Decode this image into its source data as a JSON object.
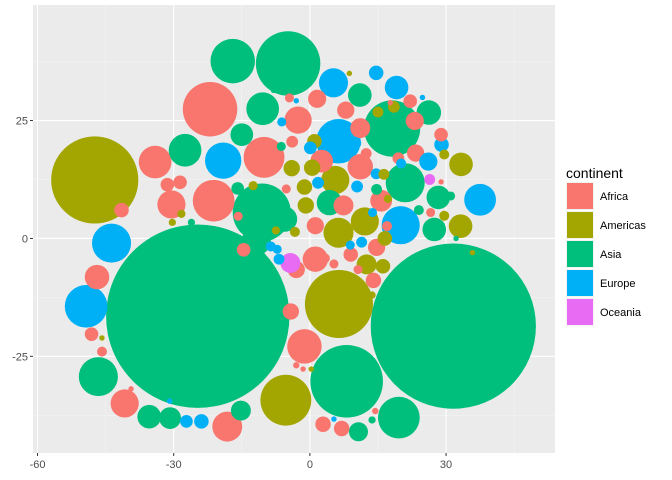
{
  "chart_data": {
    "type": "scatter",
    "subtype": "packed-circles",
    "xlim": [
      -61,
      54
    ],
    "ylim": [
      -45.5,
      49.5
    ],
    "x_ticks": [
      -60,
      -30,
      0,
      30
    ],
    "x_tick_labels": [
      "-60",
      "-30",
      "0",
      "30"
    ],
    "y_ticks": [
      -25,
      0,
      25
    ],
    "y_tick_labels": [
      "-25",
      "0",
      "25"
    ],
    "grid": true,
    "legend": {
      "title": "continent",
      "position": "right",
      "entries": [
        {
          "label": "Africa",
          "color": "#F8766D"
        },
        {
          "label": "Americas",
          "color": "#A3A500"
        },
        {
          "label": "Asia",
          "color": "#00BF7D"
        },
        {
          "label": "Europe",
          "color": "#00B0F6"
        },
        {
          "label": "Oceania",
          "color": "#E76BF3"
        }
      ]
    },
    "circles": [
      {
        "c": "Asia",
        "x": -24.7,
        "y": -16.5,
        "r": 20.2
      },
      {
        "c": "Asia",
        "x": 31.6,
        "y": -18.6,
        "r": 18.2
      },
      {
        "c": "Americas",
        "x": -47.4,
        "y": 12.4,
        "r": 9.6
      },
      {
        "c": "Americas",
        "x": 6.4,
        "y": -13.9,
        "r": 7.5
      },
      {
        "c": "Asia",
        "x": 8.1,
        "y": -30.3,
        "r": 8.0
      },
      {
        "c": "Asia",
        "x": -4.8,
        "y": 37.1,
        "r": 7.1
      },
      {
        "c": "Asia",
        "x": -10.6,
        "y": 5.5,
        "r": 6.4
      },
      {
        "c": "Asia",
        "x": 18.1,
        "y": 23.3,
        "r": 6.2
      },
      {
        "c": "Africa",
        "x": -22.0,
        "y": 27.4,
        "r": 6.0
      },
      {
        "c": "Europe",
        "x": 6.3,
        "y": 20.6,
        "r": 4.9
      },
      {
        "c": "Americas",
        "x": -5.3,
        "y": -34.3,
        "r": 5.6
      },
      {
        "c": "Asia",
        "x": -17.0,
        "y": 37.6,
        "r": 4.9
      },
      {
        "c": "Asia",
        "x": 19.6,
        "y": -38.0,
        "r": 4.6
      },
      {
        "c": "Africa",
        "x": -21.2,
        "y": 8.0,
        "r": 4.6
      },
      {
        "c": "Africa",
        "x": -10.1,
        "y": 17.2,
        "r": 4.5
      },
      {
        "c": "Asia",
        "x": -46.6,
        "y": -29.3,
        "r": 4.3
      },
      {
        "c": "Africa",
        "x": -1.2,
        "y": -22.9,
        "r": 3.8
      },
      {
        "c": "Europe",
        "x": -43.7,
        "y": -1.0,
        "r": 4.3
      },
      {
        "c": "Europe",
        "x": -49.3,
        "y": -14.4,
        "r": 4.7
      },
      {
        "c": "Asia",
        "x": 21.0,
        "y": 11.8,
        "r": 4.3
      },
      {
        "c": "Africa",
        "x": -34.1,
        "y": 16.2,
        "r": 3.6
      },
      {
        "c": "Europe",
        "x": -19.1,
        "y": 16.5,
        "r": 4.0
      },
      {
        "c": "Asia",
        "x": -27.5,
        "y": 18.7,
        "r": 3.6
      },
      {
        "c": "Asia",
        "x": -10.4,
        "y": 27.5,
        "r": 3.6
      },
      {
        "c": "Europe",
        "x": 20.0,
        "y": 2.8,
        "r": 4.2
      },
      {
        "c": "Asia",
        "x": -11.8,
        "y": -0.5,
        "r": 3.2
      },
      {
        "c": "Africa",
        "x": -40.8,
        "y": -35.0,
        "r": 3.1
      },
      {
        "c": "Asia",
        "x": -35.4,
        "y": -37.8,
        "r": 2.6
      },
      {
        "c": "Africa",
        "x": -18.2,
        "y": -39.9,
        "r": 3.3
      },
      {
        "c": "Europe",
        "x": 37.5,
        "y": 8.2,
        "r": 3.5
      },
      {
        "c": "Europe",
        "x": 5.2,
        "y": 33.0,
        "r": 3.2
      },
      {
        "c": "Africa",
        "x": -30.5,
        "y": 7.2,
        "r": 3.1
      },
      {
        "c": "Americas",
        "x": 5.6,
        "y": 12.4,
        "r": 3.1
      },
      {
        "c": "Americas",
        "x": 6.3,
        "y": 1.2,
        "r": 3.3
      },
      {
        "c": "Africa",
        "x": 11.1,
        "y": 15.2,
        "r": 2.8
      },
      {
        "c": "Asia",
        "x": 4.3,
        "y": 7.6,
        "r": 2.8
      },
      {
        "c": "Americas",
        "x": 12.1,
        "y": 3.6,
        "r": 3.1
      },
      {
        "c": "Asia",
        "x": -5.6,
        "y": 4.1,
        "r": 2.8
      },
      {
        "c": "Africa",
        "x": -2.6,
        "y": 25.1,
        "r": 3.0
      },
      {
        "c": "Africa",
        "x": -46.9,
        "y": -8.2,
        "r": 2.7
      },
      {
        "c": "Africa",
        "x": 1.2,
        "y": -4.4,
        "r": 2.8
      },
      {
        "c": "Asia",
        "x": 27.4,
        "y": 1.9,
        "r": 2.6
      },
      {
        "c": "Asia",
        "x": 26.2,
        "y": 26.7,
        "r": 2.7
      },
      {
        "c": "Asia",
        "x": -30.8,
        "y": -38.1,
        "r": 2.4
      },
      {
        "c": "Asia",
        "x": 11.0,
        "y": 30.4,
        "r": 2.6
      },
      {
        "c": "Europe",
        "x": 19.1,
        "y": 32.0,
        "r": 2.6
      },
      {
        "c": "Asia",
        "x": 28.3,
        "y": 8.7,
        "r": 2.6
      },
      {
        "c": "Americas",
        "x": 33.3,
        "y": 15.7,
        "r": 2.6
      },
      {
        "c": "Americas",
        "x": 33.2,
        "y": 2.6,
        "r": 2.6
      },
      {
        "c": "Asia",
        "x": -15.0,
        "y": 22.0,
        "r": 2.5
      },
      {
        "c": "Africa",
        "x": 15.7,
        "y": 8.0,
        "r": 2.4
      },
      {
        "c": "Africa",
        "x": 11.1,
        "y": 23.4,
        "r": 2.2
      },
      {
        "c": "Africa",
        "x": 2.6,
        "y": 16.4,
        "r": 2.5
      },
      {
        "c": "Africa",
        "x": 7.4,
        "y": 7.0,
        "r": 2.2
      },
      {
        "c": "Americas",
        "x": 12.5,
        "y": -5.5,
        "r": 2.2
      },
      {
        "c": "Asia",
        "x": -15.2,
        "y": -36.5,
        "r": 2.2
      },
      {
        "c": "Africa",
        "x": 1.6,
        "y": 29.6,
        "r": 2.0
      },
      {
        "c": "Africa",
        "x": 7.9,
        "y": 27.2,
        "r": 1.9
      },
      {
        "c": "Africa",
        "x": 23.1,
        "y": 24.9,
        "r": 2.0
      },
      {
        "c": "Africa",
        "x": 23.3,
        "y": 18.1,
        "r": 1.9
      },
      {
        "c": "Europe",
        "x": 26.1,
        "y": 16.3,
        "r": 2.0
      },
      {
        "c": "Africa",
        "x": -41.5,
        "y": 6.0,
        "r": 1.6
      },
      {
        "c": "Africa",
        "x": -3.0,
        "y": -6.6,
        "r": 1.9
      },
      {
        "c": "Africa",
        "x": -4.2,
        "y": -15.5,
        "r": 1.8
      },
      {
        "c": "Americas",
        "x": 1.0,
        "y": 20.6,
        "r": 1.6
      },
      {
        "c": "Americas",
        "x": -4.0,
        "y": 14.9,
        "r": 1.8
      },
      {
        "c": "Americas",
        "x": 0.5,
        "y": 15.0,
        "r": 1.8
      },
      {
        "c": "Americas",
        "x": -1.2,
        "y": 10.9,
        "r": 1.7
      },
      {
        "c": "Americas",
        "x": -0.9,
        "y": 7.0,
        "r": 1.8
      },
      {
        "c": "Africa",
        "x": 1.2,
        "y": 2.7,
        "r": 1.9
      },
      {
        "c": "Africa",
        "x": 14.7,
        "y": -1.9,
        "r": 1.9
      },
      {
        "c": "Americas",
        "x": 16.5,
        "y": 0.0,
        "r": 1.6
      },
      {
        "c": "Americas",
        "x": 16.1,
        "y": -5.9,
        "r": 1.6
      },
      {
        "c": "Africa",
        "x": 9.0,
        "y": -3.4,
        "r": 1.6
      },
      {
        "c": "Africa",
        "x": 14.0,
        "y": -8.9,
        "r": 1.7
      },
      {
        "c": "Africa",
        "x": 2.9,
        "y": -39.4,
        "r": 1.7
      },
      {
        "c": "Asia",
        "x": 10.7,
        "y": -41.0,
        "r": 2.1
      },
      {
        "c": "Africa",
        "x": 7.0,
        "y": -40.3,
        "r": 1.7
      },
      {
        "c": "Europe",
        "x": -23.9,
        "y": -38.8,
        "r": 1.6
      },
      {
        "c": "Europe",
        "x": -27.2,
        "y": -38.8,
        "r": 1.4
      },
      {
        "c": "Oceania",
        "x": -4.3,
        "y": -5.2,
        "r": 2.2
      },
      {
        "c": "Africa",
        "x": -48.1,
        "y": -20.3,
        "r": 1.5
      },
      {
        "c": "Asia",
        "x": -23.6,
        "y": -7.2,
        "r": 1.4
      },
      {
        "c": "Africa",
        "x": -14.6,
        "y": -2.4,
        "r": 1.5
      },
      {
        "c": "Africa",
        "x": -28.6,
        "y": 11.9,
        "r": 1.5
      },
      {
        "c": "Africa",
        "x": -31.4,
        "y": 11.4,
        "r": 1.5
      },
      {
        "c": "Asia",
        "x": -15.9,
        "y": 10.6,
        "r": 1.4
      },
      {
        "c": "Europe",
        "x": 1.8,
        "y": 11.8,
        "r": 1.3
      },
      {
        "c": "Europe",
        "x": 0.1,
        "y": 19.2,
        "r": 1.4
      },
      {
        "c": "Africa",
        "x": -3.9,
        "y": 20.5,
        "r": 1.3
      },
      {
        "c": "Americas",
        "x": 18.5,
        "y": 27.9,
        "r": 1.3
      },
      {
        "c": "Africa",
        "x": 22.1,
        "y": 29.1,
        "r": 1.5
      },
      {
        "c": "Europe",
        "x": 29.0,
        "y": 19.9,
        "r": 1.6
      },
      {
        "c": "Europe",
        "x": 14.6,
        "y": 35.1,
        "r": 1.6
      },
      {
        "c": "Europe",
        "x": 9.9,
        "y": 20.2,
        "r": 1.4
      },
      {
        "c": "Europe",
        "x": 10.4,
        "y": 11.0,
        "r": 1.3
      },
      {
        "c": "Europe",
        "x": 14.6,
        "y": 13.7,
        "r": 1.2
      },
      {
        "c": "Asia",
        "x": 14.7,
        "y": 10.4,
        "r": 1.2
      },
      {
        "c": "Americas",
        "x": 16.3,
        "y": 13.6,
        "r": 1.2
      },
      {
        "c": "Americas",
        "x": 15.0,
        "y": 26.8,
        "r": 1.2
      },
      {
        "c": "Africa",
        "x": 28.9,
        "y": 22.0,
        "r": 1.5
      },
      {
        "c": "Africa",
        "x": 19.5,
        "y": 17.0,
        "r": 1.3
      },
      {
        "c": "Africa",
        "x": 12.4,
        "y": 18.0,
        "r": 1.2
      },
      {
        "c": "Oceania",
        "x": 26.4,
        "y": 12.5,
        "r": 1.2
      },
      {
        "c": "Americas",
        "x": 29.6,
        "y": 17.8,
        "r": 1.1
      },
      {
        "c": "Asia",
        "x": 31.0,
        "y": 9.0,
        "r": 1.0
      },
      {
        "c": "Americas",
        "x": 29.6,
        "y": 4.8,
        "r": 1.1
      },
      {
        "c": "Africa",
        "x": 26.6,
        "y": 5.5,
        "r": 1.0
      },
      {
        "c": "Asia",
        "x": 24.0,
        "y": 6.0,
        "r": 1.1
      },
      {
        "c": "Europe",
        "x": 20.1,
        "y": 15.9,
        "r": 1.1
      },
      {
        "c": "Africa",
        "x": 17.0,
        "y": 2.6,
        "r": 1.1
      },
      {
        "c": "Europe",
        "x": 11.4,
        "y": -0.8,
        "r": 1.2
      },
      {
        "c": "Africa",
        "x": 3.3,
        "y": -4.2,
        "r": 1.1
      },
      {
        "c": "Africa",
        "x": 5.3,
        "y": -5.4,
        "r": 1.0
      },
      {
        "c": "Europe",
        "x": 8.9,
        "y": -1.4,
        "r": 1.0
      },
      {
        "c": "Africa",
        "x": 10.6,
        "y": -6.6,
        "r": 1.0
      },
      {
        "c": "Americas",
        "x": 13.7,
        "y": -12.0,
        "r": 0.8
      },
      {
        "c": "Europe",
        "x": 13.8,
        "y": 5.5,
        "r": 1.0
      },
      {
        "c": "Americas",
        "x": 17.2,
        "y": 8.4,
        "r": 0.9
      },
      {
        "c": "Europe",
        "x": -6.8,
        "y": -4.4,
        "r": 1.2
      },
      {
        "c": "Europe",
        "x": -7.2,
        "y": -2.3,
        "r": 1.0
      },
      {
        "c": "Europe",
        "x": -8.6,
        "y": -1.7,
        "r": 1.1
      },
      {
        "c": "Americas",
        "x": -3.3,
        "y": 1.4,
        "r": 1.1
      },
      {
        "c": "Americas",
        "x": -7.5,
        "y": 1.7,
        "r": 0.9
      },
      {
        "c": "Africa",
        "x": -5.2,
        "y": 10.5,
        "r": 1.0
      },
      {
        "c": "Europe",
        "x": -6.2,
        "y": 24.7,
        "r": 1.0
      },
      {
        "c": "Africa",
        "x": -4.5,
        "y": 29.8,
        "r": 1.0
      },
      {
        "c": "Asia",
        "x": -6.3,
        "y": 19.5,
        "r": 1.0
      },
      {
        "c": "Americas",
        "x": -12.5,
        "y": 11.2,
        "r": 1.0
      },
      {
        "c": "Africa",
        "x": -15.8,
        "y": 4.7,
        "r": 1.0
      },
      {
        "c": "Americas",
        "x": -28.3,
        "y": 5.2,
        "r": 0.9
      },
      {
        "c": "Asia",
        "x": -26.1,
        "y": 3.4,
        "r": 0.8
      },
      {
        "c": "Americas",
        "x": -30.3,
        "y": 3.4,
        "r": 0.8
      },
      {
        "c": "Americas",
        "x": -45.8,
        "y": -21.1,
        "r": 0.6
      },
      {
        "c": "Africa",
        "x": -45.8,
        "y": -24.0,
        "r": 1.1
      },
      {
        "c": "Africa",
        "x": -39.4,
        "y": -31.9,
        "r": 0.6
      },
      {
        "c": "Europe",
        "x": -30.9,
        "y": -34.5,
        "r": 0.6
      },
      {
        "c": "Asia",
        "x": -26.6,
        "y": -2.1,
        "r": 0.7
      },
      {
        "c": "Africa",
        "x": -3.0,
        "y": -26.9,
        "r": 0.7
      },
      {
        "c": "Africa",
        "x": -1.5,
        "y": -27.7,
        "r": 0.6
      },
      {
        "c": "Americas",
        "x": 0.3,
        "y": -27.7,
        "r": 0.6
      },
      {
        "c": "Africa",
        "x": 14.4,
        "y": -36.6,
        "r": 0.7
      },
      {
        "c": "Asia",
        "x": 13.7,
        "y": -38.5,
        "r": 0.8
      },
      {
        "c": "Europe",
        "x": 5.3,
        "y": -38.3,
        "r": 0.6
      },
      {
        "c": "Americas",
        "x": 35.8,
        "y": -3.0,
        "r": 0.6
      },
      {
        "c": "Asia",
        "x": 32.2,
        "y": 0.0,
        "r": 0.6
      },
      {
        "c": "Africa",
        "x": 28.9,
        "y": 12.0,
        "r": 0.6
      },
      {
        "c": "Europe",
        "x": 24.8,
        "y": 29.9,
        "r": 0.6
      },
      {
        "c": "Africa",
        "x": 17.7,
        "y": 28.8,
        "r": 0.6
      },
      {
        "c": "Americas",
        "x": 8.7,
        "y": 35.0,
        "r": 0.6
      },
      {
        "c": "Europe",
        "x": -3.0,
        "y": 29.2,
        "r": 0.6
      },
      {
        "c": "Asia",
        "x": -8.0,
        "y": 31.4,
        "r": 0.6
      }
    ]
  }
}
